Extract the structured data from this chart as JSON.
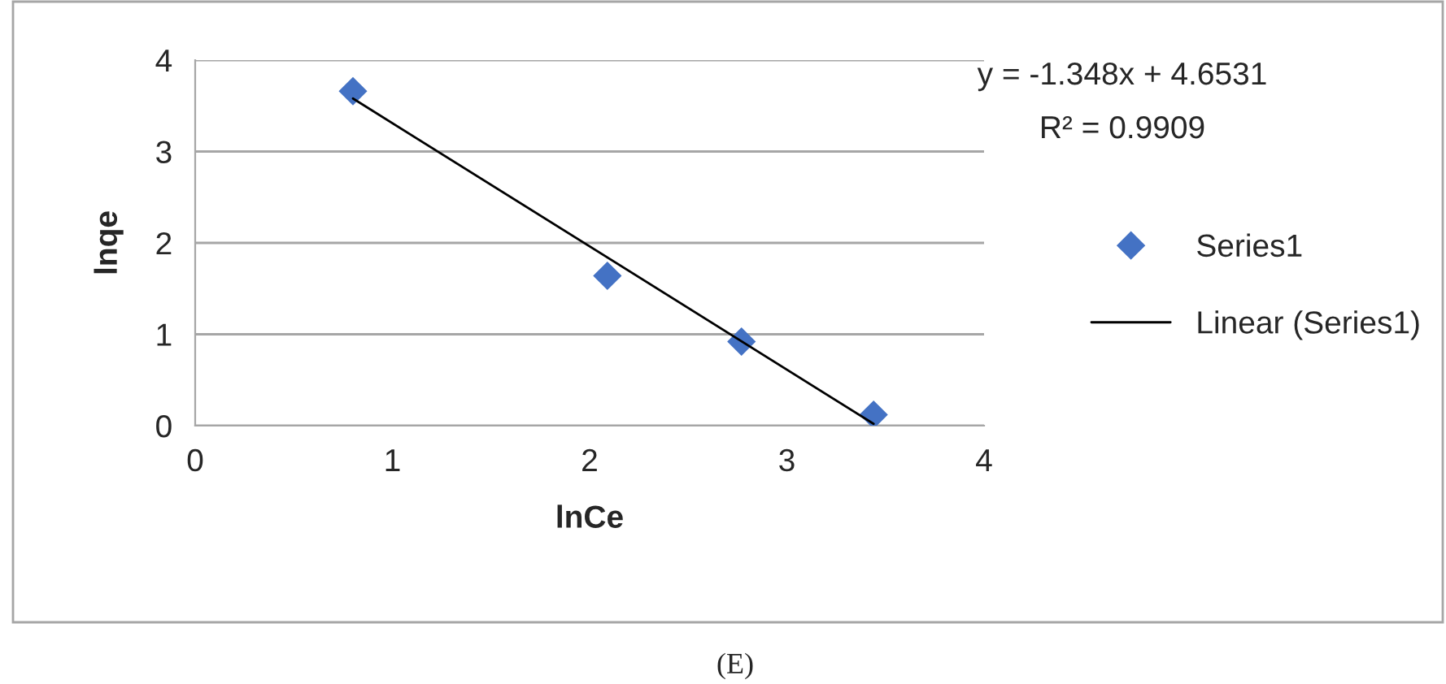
{
  "chart_data": {
    "type": "scatter",
    "xlabel": "lnCe",
    "ylabel": "lnqe",
    "series": [
      {
        "name": "Series1",
        "color": "#4472c4",
        "marker": "diamond",
        "x": [
          0.8,
          2.09,
          2.77,
          3.44
        ],
        "values": [
          3.66,
          1.64,
          0.92,
          0.12
        ]
      },
      {
        "name": "Linear (Series1)",
        "type": "line",
        "color": "#000000",
        "marker": "none",
        "line_style": "solid",
        "x": [
          0.8,
          3.44
        ],
        "values": [
          3.58,
          0.02
        ]
      }
    ],
    "xlim": [
      0,
      4
    ],
    "xticks": [
      0,
      1,
      2,
      3,
      4
    ],
    "ylim": [
      0,
      4
    ],
    "yticks": [
      0,
      1,
      2,
      3,
      4
    ],
    "grid": "y",
    "legend": "right",
    "annotations": [
      "y = -1.348x + 4.6531",
      "R² = 0.9909",
      "(E)"
    ]
  }
}
